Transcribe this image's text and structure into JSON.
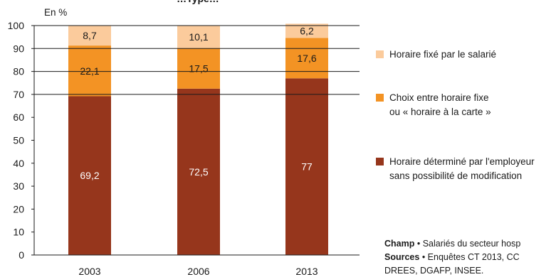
{
  "chart_data": {
    "type": "bar",
    "stacked": true,
    "title": "…Type…",
    "ylabel": "En %",
    "ylim": [
      0,
      100
    ],
    "yticks": [
      0,
      10,
      20,
      30,
      40,
      50,
      60,
      70,
      80,
      90,
      100
    ],
    "categories": [
      "2003",
      "2006",
      "2013"
    ],
    "series": [
      {
        "name": "Horaire déterminé par l'employeur sans possibilité de modification",
        "values": [
          69.2,
          72.5,
          77
        ],
        "labels": [
          "69,2",
          "72,5",
          "77"
        ],
        "color": "#96361c",
        "label_color": "#ffffff"
      },
      {
        "name": "Choix entre horaire fixe ou « horaire à la carte »",
        "values": [
          22.1,
          17.5,
          17.6
        ],
        "labels": [
          "22,1",
          "17,5",
          "17,6"
        ],
        "color": "#f39324",
        "label_color": "#1a1a1a"
      },
      {
        "name": "Horaire fixé par le salarié",
        "values": [
          8.7,
          10.1,
          6.2
        ],
        "labels": [
          "8,7",
          "10,1",
          "6,2"
        ],
        "color": "#fbcb9c",
        "label_color": "#1a1a1a"
      }
    ],
    "legend_position": "right",
    "grid": false
  },
  "legend": [
    {
      "line1": "Horaire fixé par le salarié",
      "line2": "",
      "color": "#fbcb9c"
    },
    {
      "line1": "Choix entre horaire fixe",
      "line2": "ou « horaire à la carte »",
      "color": "#f39324"
    },
    {
      "line1": "Horaire déterminé par l'employeur",
      "line2": "sans possibilité  de modification",
      "color": "#96361c"
    }
  ],
  "notes": {
    "champ_label": "Champ",
    "champ_text": " • Salariés du secteur hosp",
    "sources_label": "Sources",
    "sources_text": " • Enquêtes CT 2013, CC",
    "sources_line2": "DREES, DGAFP, INSEE."
  }
}
